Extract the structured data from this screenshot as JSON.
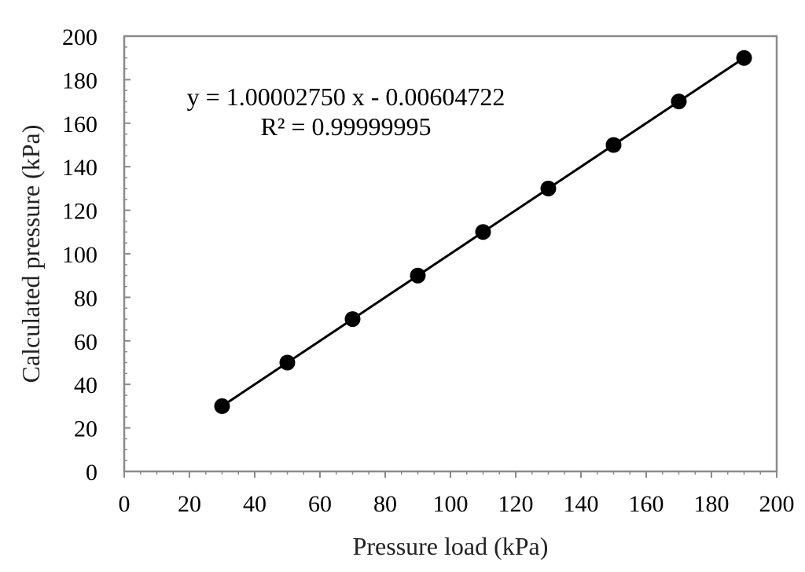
{
  "chart_data": {
    "type": "scatter",
    "title": "",
    "xlabel": "Pressure load (kPa)",
    "ylabel": "Calculated pressure (kPa)",
    "xlim": [
      0,
      200
    ],
    "ylim": [
      0,
      200
    ],
    "xticks": [
      "0",
      "20",
      "40",
      "60",
      "80",
      "100",
      "120",
      "140",
      "160",
      "180",
      "200"
    ],
    "yticks": [
      "0",
      "20",
      "40",
      "60",
      "80",
      "100",
      "120",
      "140",
      "160",
      "180",
      "200"
    ],
    "grid": false,
    "legend": "none",
    "series": [
      {
        "x": [
          30,
          50,
          70,
          90,
          110,
          130,
          150,
          170,
          190
        ],
        "y": [
          30,
          50,
          70,
          90,
          110,
          130,
          150,
          170,
          190
        ],
        "marker_color": "#000000",
        "trendline": {
          "type": "linear",
          "slope": 1.0000275,
          "intercept": -0.00604722,
          "color": "#000000"
        }
      }
    ],
    "annotations": [
      "y = 1.00002750 x - 0.00604722",
      "R² = 0.99999995"
    ]
  }
}
